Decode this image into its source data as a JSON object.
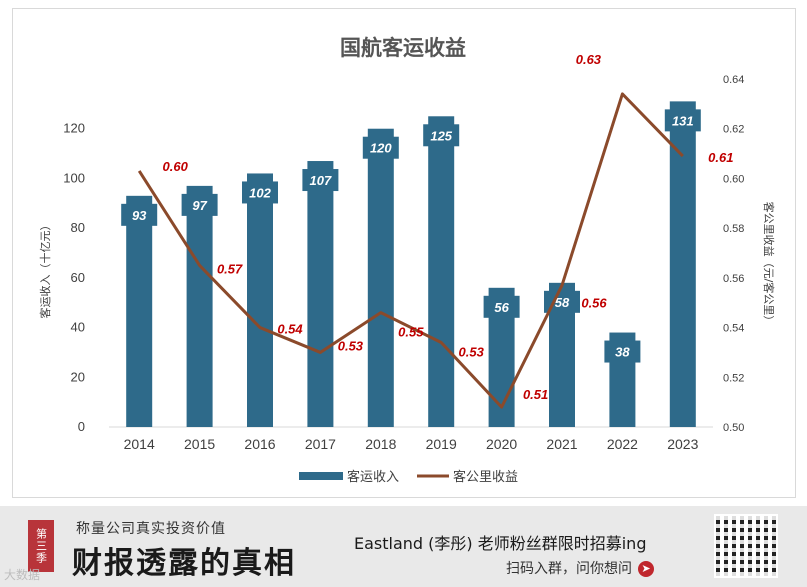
{
  "chart_data": {
    "type": "bar+line",
    "title": "国航客运收益",
    "categories": [
      "2014",
      "2015",
      "2016",
      "2017",
      "2018",
      "2019",
      "2020",
      "2021",
      "2022",
      "2023"
    ],
    "series": [
      {
        "name": "客运收入",
        "type": "bar",
        "axis": "left",
        "color": "#2e6a8a",
        "values": [
          93,
          97,
          102,
          107,
          120,
          125,
          56,
          58,
          38,
          131
        ],
        "labels": [
          "93",
          "97",
          "102",
          "107",
          "120",
          "125",
          "56",
          "58",
          "38",
          "131"
        ]
      },
      {
        "name": "客公里收益",
        "type": "line",
        "axis": "right",
        "color": "#8b4a2b",
        "values": [
          0.603,
          0.565,
          0.54,
          0.53,
          0.546,
          0.534,
          0.508,
          0.557,
          0.634,
          0.609
        ],
        "labels": [
          "0.60",
          "0.57",
          "0.54",
          "0.53",
          "0.55",
          "0.53",
          "0.51",
          "0.56",
          "0.63",
          "0.61"
        ]
      }
    ],
    "ylabel": "客运收入（十亿元）",
    "ylabel_right": "客公里收益（元/客公里）",
    "ylim": [
      0,
      140
    ],
    "yticks": [
      "0",
      "20",
      "40",
      "60",
      "80",
      "100",
      "120"
    ],
    "ylim_right": [
      0.5,
      0.64
    ],
    "yticks_right": [
      "0.50",
      "0.52",
      "0.54",
      "0.56",
      "0.58",
      "0.60",
      "0.62",
      "0.64"
    ],
    "grid": false,
    "legend": "bottom"
  },
  "banner": {
    "badge": "第三季",
    "subtitle": "称量公司真实投资价值",
    "title": "财报透露的真相",
    "promo": "Eastland (李彤) 老师粉丝群限时招募ing",
    "cta": "扫码入群，问你想问",
    "watermark": "大数据"
  }
}
